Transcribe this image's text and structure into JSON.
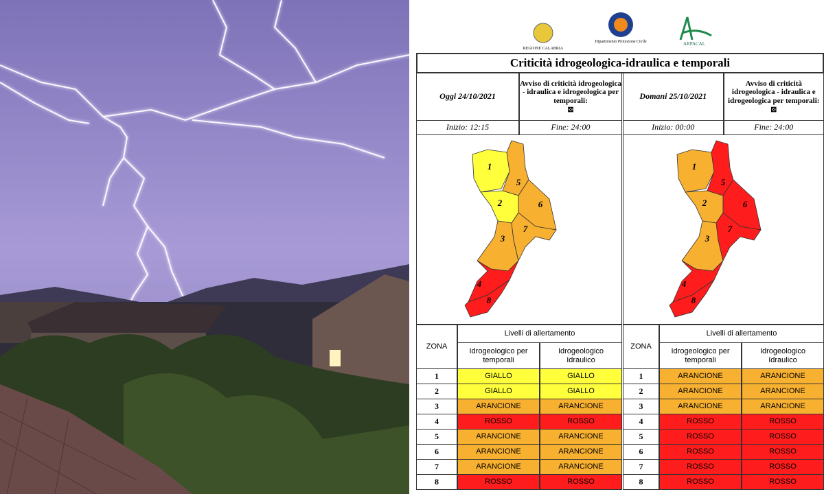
{
  "logos": [
    "REGIONE CALABRIA",
    "Dipartimento Protezione Civile",
    "ARPACAL"
  ],
  "title": "Criticità idrogeologica-idraulica e temporali",
  "level_colors": {
    "GIALLO": "#ffff3c",
    "ARANCIONE": "#f7b030",
    "ROSSO": "#ff1c1c"
  },
  "days": [
    {
      "date": "Oggi 24/10/2021",
      "notice": "Avviso di criticità idrogeologica - idraulica e idrogeologica per temporali:",
      "start": "Inizio: 12:15",
      "end": "Fine: 24:00",
      "map_labels": [
        "1",
        "2",
        "3",
        "4",
        "5",
        "6",
        "7",
        "8"
      ],
      "table": {
        "zone_header": "ZONA",
        "group_header": "Livelli di allertamento",
        "col_headers": [
          "Idrogeologico per temporali",
          "Idrogeologico Idraulico"
        ],
        "rows": [
          [
            "1",
            "GIALLO",
            "GIALLO"
          ],
          [
            "2",
            "GIALLO",
            "GIALLO"
          ],
          [
            "3",
            "ARANCIONE",
            "ARANCIONE"
          ],
          [
            "4",
            "ROSSO",
            "ROSSO"
          ],
          [
            "5",
            "ARANCIONE",
            "ARANCIONE"
          ],
          [
            "6",
            "ARANCIONE",
            "ARANCIONE"
          ],
          [
            "7",
            "ARANCIONE",
            "ARANCIONE"
          ],
          [
            "8",
            "ROSSO",
            "ROSSO"
          ]
        ]
      }
    },
    {
      "date": "Domani 25/10/2021",
      "notice": "Avviso di criticità idrogeologica - idraulica e idrogeologica per temporali:",
      "start": "Inizio: 00:00",
      "end": "Fine: 24:00",
      "map_labels": [
        "1",
        "2",
        "3",
        "4",
        "5",
        "6",
        "7",
        "8"
      ],
      "table": {
        "zone_header": "ZONA",
        "group_header": "Livelli di allertamento",
        "col_headers": [
          "Idrogeologico per temporali",
          "Idrogeologico Idraulico"
        ],
        "rows": [
          [
            "1",
            "ARANCIONE",
            "ARANCIONE"
          ],
          [
            "2",
            "ARANCIONE",
            "ARANCIONE"
          ],
          [
            "3",
            "ARANCIONE",
            "ARANCIONE"
          ],
          [
            "4",
            "ROSSO",
            "ROSSO"
          ],
          [
            "5",
            "ROSSO",
            "ROSSO"
          ],
          [
            "6",
            "ROSSO",
            "ROSSO"
          ],
          [
            "7",
            "ROSSO",
            "ROSSO"
          ],
          [
            "8",
            "ROSSO",
            "ROSSO"
          ]
        ]
      }
    }
  ]
}
